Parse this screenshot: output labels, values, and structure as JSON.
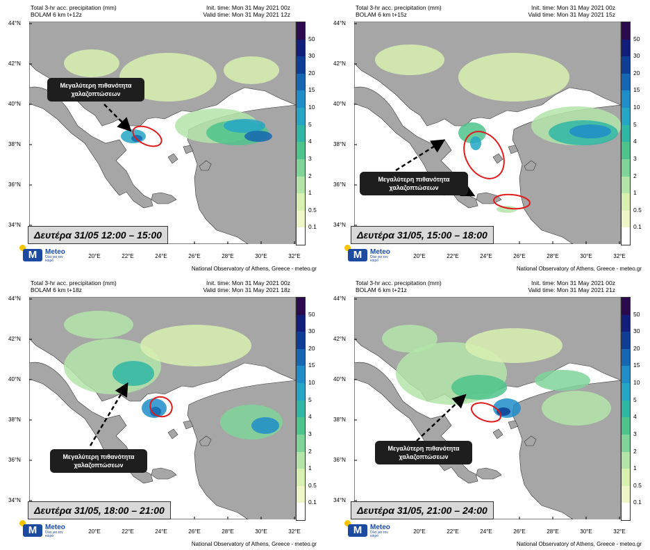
{
  "panels": [
    {
      "title_line1": "Total 3-hr acc. precipitation (mm)",
      "title_line2": "BOLAM 6 km t+12z",
      "init_time": "Init. time: Mon 31 May 2021 00z",
      "valid_time": "Valid time: Mon 31 May 2021 12z",
      "date_label": "Δευτέρα 31/05 12:00 – 15:00",
      "callout": "Μεγαλύτερη πιθανότητα χαλαζοπτώσεων"
    },
    {
      "title_line1": "Total 3-hr acc. precipitation (mm)",
      "title_line2": "BOLAM 6 km t+15z",
      "init_time": "Init. time: Mon 31 May 2021 00z",
      "valid_time": "Valid time: Mon 31 May 2021 15z",
      "date_label": "Δευτέρα 31/05, 15:00 – 18:00",
      "callout": "Μεγαλύτερη πιθανότητα χαλαζοπτώσεων"
    },
    {
      "title_line1": "Total 3-hr acc. precipitation (mm)",
      "title_line2": "BOLAM 6 km t+18z",
      "init_time": "Init. time: Mon 31 May 2021 00z",
      "valid_time": "Valid time: Mon 31 May 2021 18z",
      "date_label": "Δευτέρα 31/05, 18:00 – 21:00",
      "callout": "Μεγαλύτερη πιθανότητα χαλαζοπτώσεων"
    },
    {
      "title_line1": "Total 3-hr acc. precipitation (mm)",
      "title_line2": "BOLAM 6 km t+21z",
      "init_time": "Init. time: Mon 31 May 2021 00z",
      "valid_time": "Valid time: Mon 31 May 2021 21z",
      "date_label": "Δευτέρα 31/05, 21:00 – 24:00",
      "callout": "Μεγαλύτερη πιθανότητα χαλαζοπτώσεων"
    }
  ],
  "lat_labels": [
    "44°N",
    "42°N",
    "40°N",
    "38°N",
    "36°N",
    "34°N"
  ],
  "lon_labels": [
    "20°E",
    "22°E",
    "24°E",
    "26°E",
    "28°E",
    "30°E",
    "32°E"
  ],
  "colorbar": {
    "labels": [
      "50",
      "30",
      "20",
      "15",
      "10",
      "5",
      "4",
      "3",
      "2",
      "1",
      "0.5",
      "0.1"
    ],
    "colors": [
      "#2b0a4e",
      "#131e7a",
      "#0d3d94",
      "#1467b0",
      "#1e8dc8",
      "#26a6c4",
      "#2fb6a4",
      "#4fc38c",
      "#80d49a",
      "#b3e4a8",
      "#d8f0b0",
      "#eef6c8",
      "#ffffff"
    ]
  },
  "footer": "National Observatory of Athens, Greece - meteo.gr",
  "logo": {
    "name": "Meteo",
    "tagline": "Όλα για τον καιρό"
  },
  "map_colors": {
    "sea": "#ffffff",
    "land": "#a6a6a6",
    "highlight": "#e01b1b"
  }
}
